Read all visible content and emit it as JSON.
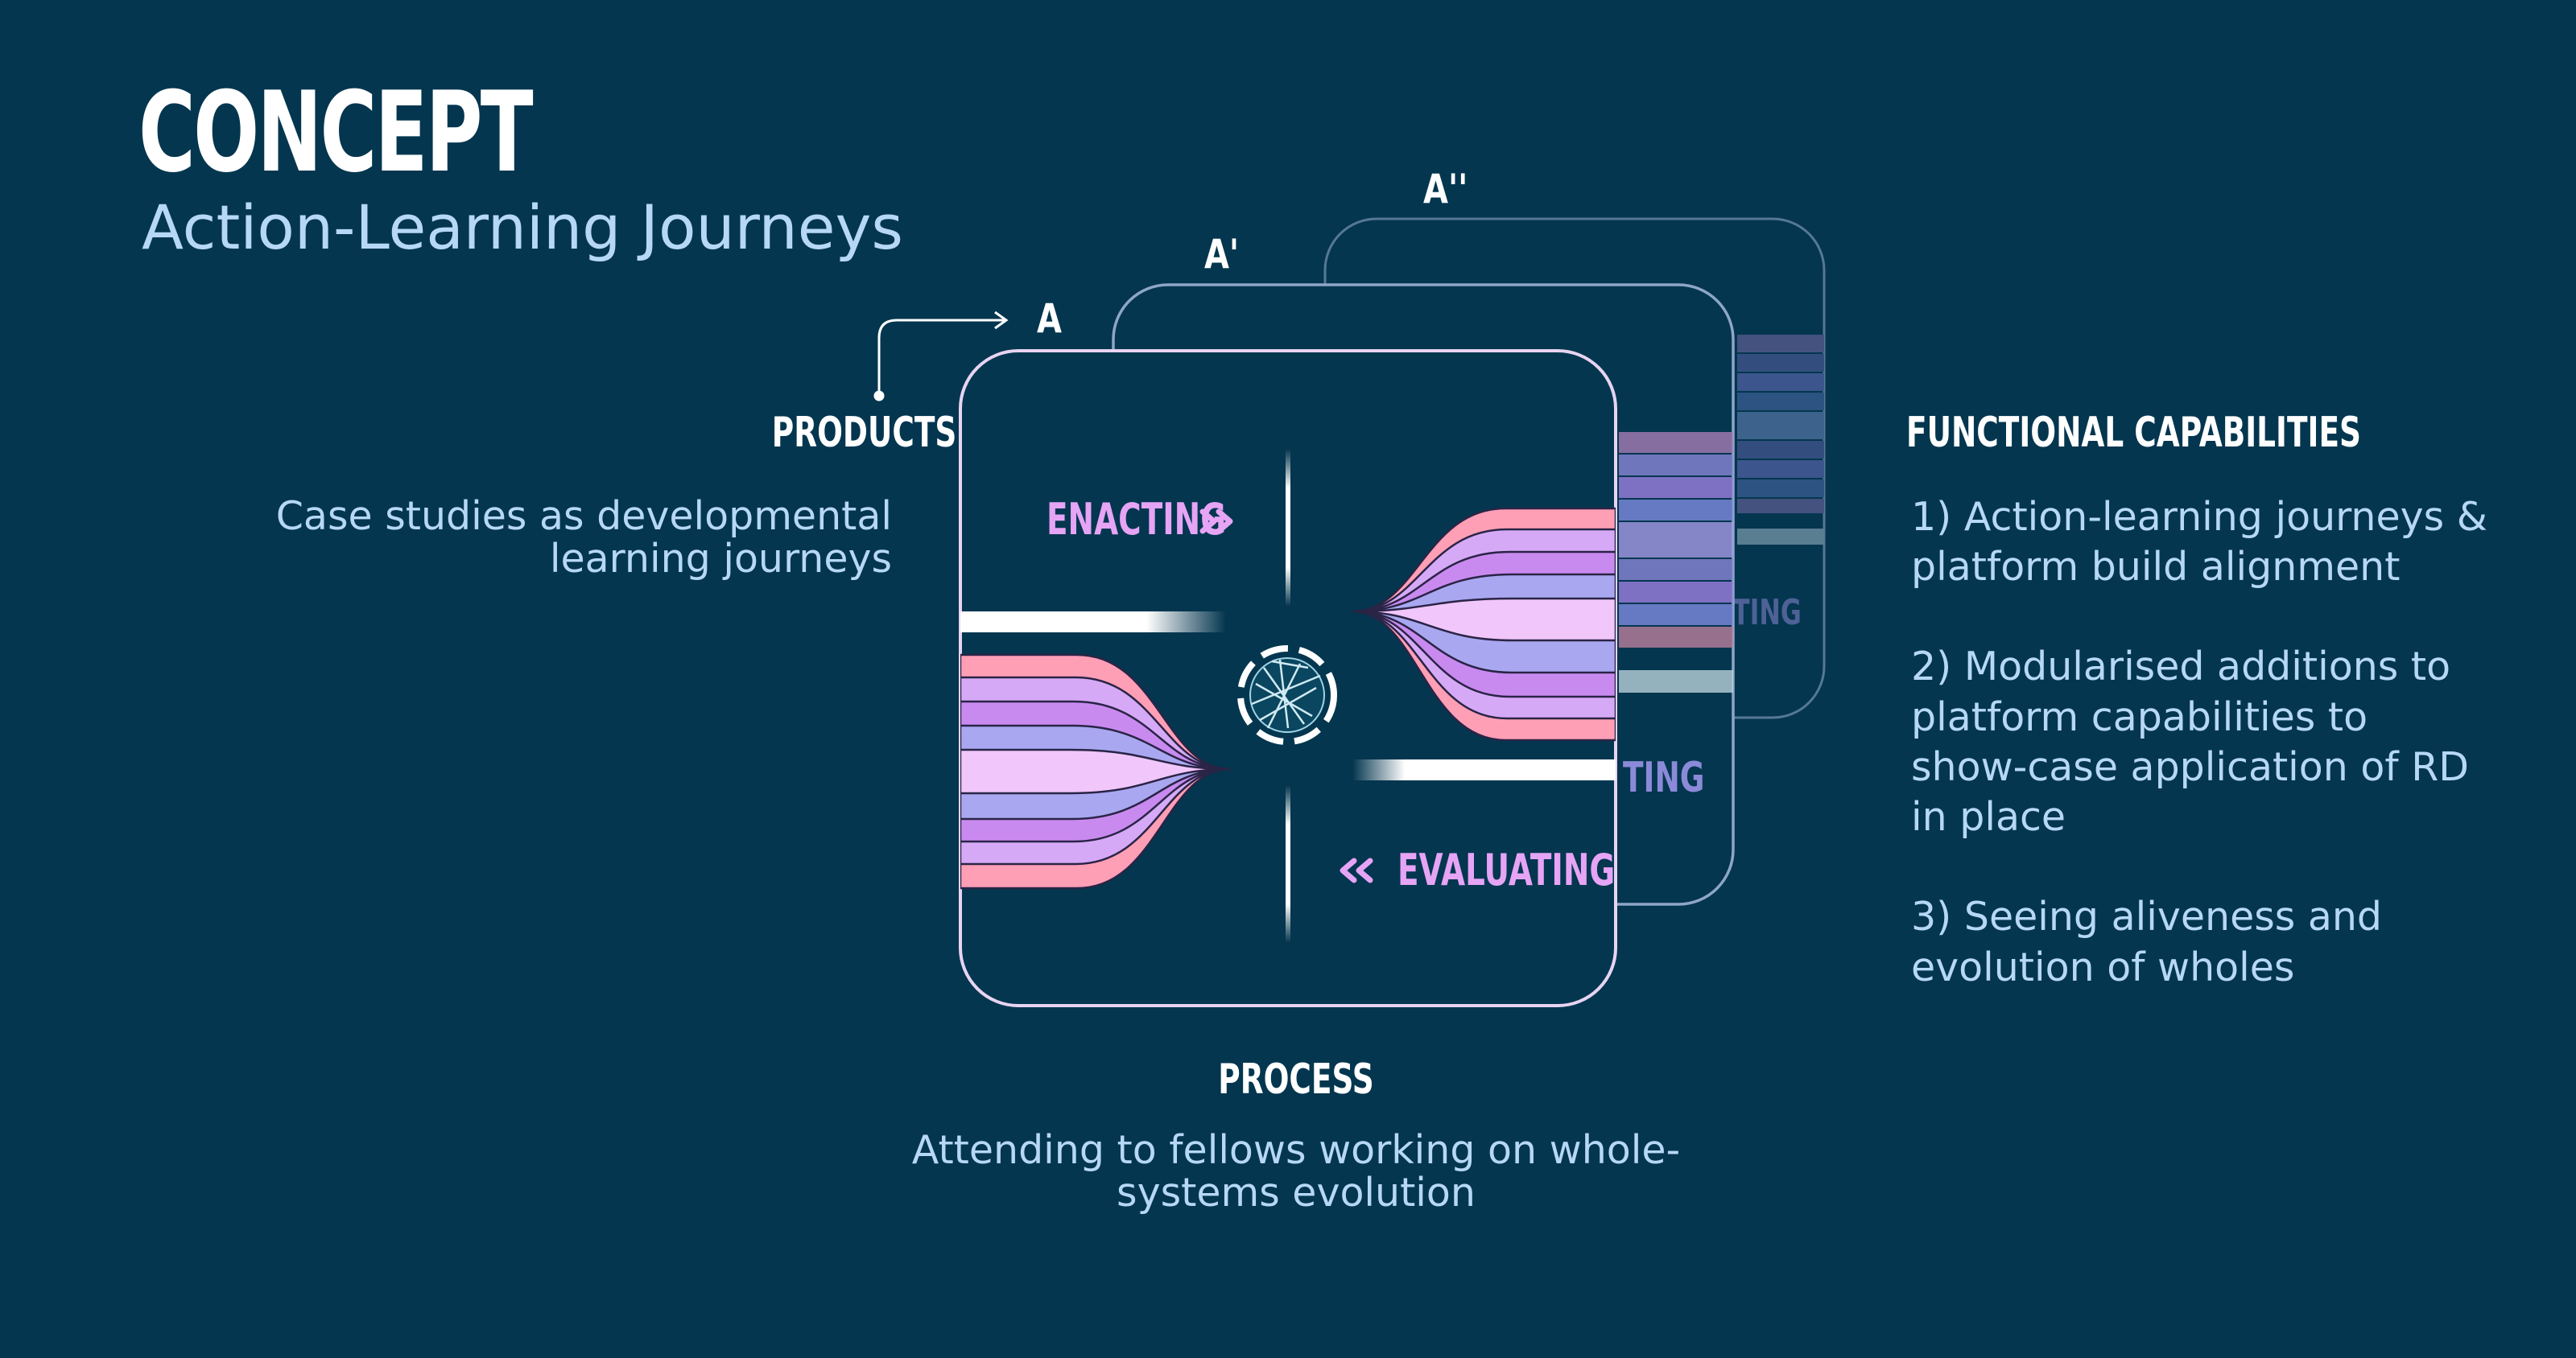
{
  "header": {
    "title": "CONCEPT",
    "subtitle": "Action-Learning Journeys"
  },
  "products": {
    "label": "PRODUCTS",
    "description": "Case studies as developmental learning journeys"
  },
  "process": {
    "label": "PROCESS",
    "description": "Attending to fellows working on whole-systems evolution"
  },
  "functional_capabilities": {
    "label": "FUNCTIONAL CAPABILITIES",
    "items": [
      "1) Action-learning journeys & platform build alignment",
      "2) Modularised additions to platform capabilities to show-case application of RD in place",
      "3) Seeing aliveness and evolution of wholes"
    ]
  },
  "cards": {
    "front_letter": "A",
    "middle_letter": "A'",
    "back_letter": "A''",
    "enacting_label": "ENACTING",
    "evaluating_label": "EVALUATING",
    "middle_partial_label": "TING",
    "back_partial_label": "TING"
  },
  "colors": {
    "background": "#04364f",
    "title": "#ffffff",
    "subtitle": "#b6d8f6",
    "accent_pink": "#ff9fb6",
    "accent_violet": "#c98af0",
    "accent_lavender": "#a9a7f0",
    "card_border": "#e8d4f2"
  }
}
